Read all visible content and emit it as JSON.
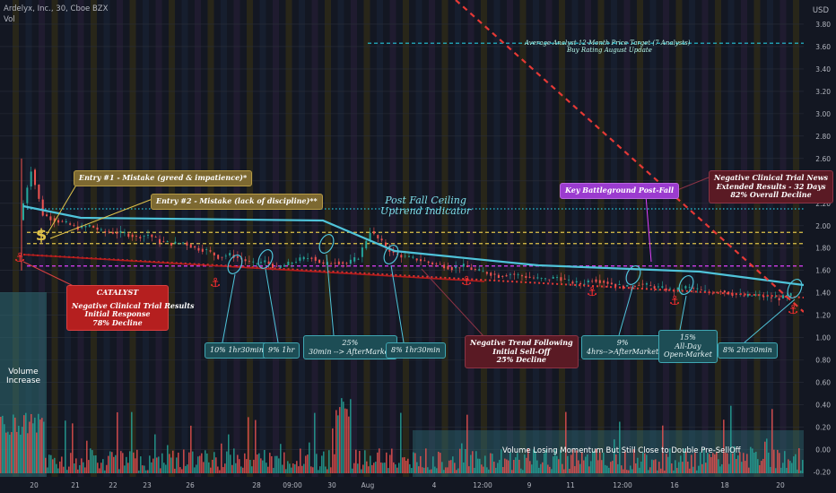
{
  "header": {
    "line1": "Ardelyx, Inc., 30, Cboe BZX",
    "line2": "Vol"
  },
  "currency": "USD",
  "colors": {
    "background": "#131722",
    "up": "#26a69a",
    "down": "#ef5350",
    "ceiling": "#4fc3d9",
    "trend": "#e53935",
    "gold": "#e0c34a",
    "magenta": "#e040fb"
  },
  "chart_data": {
    "type": "candlestick",
    "x_ticks": [
      "20",
      "21",
      "22",
      "23",
      "26",
      "28",
      "09:00",
      "30",
      "Aug",
      "4",
      "12:00",
      "9",
      "11",
      "12:00",
      "16",
      "18",
      "20"
    ],
    "y_ticks": [
      3.8,
      3.6,
      3.4,
      3.2,
      3.0,
      2.8,
      2.6,
      2.4,
      2.2,
      2.0,
      1.8,
      1.6,
      1.4,
      1.2,
      1.0,
      0.8,
      0.6,
      0.4,
      0.2,
      0.0,
      -0.2
    ],
    "y_range": [
      -0.26,
      4.0
    ],
    "price_labels": [
      {
        "value": 3.63,
        "text": "3.63",
        "color": "#26c6da"
      },
      {
        "value": 2.15,
        "text": "2.15",
        "color": "#26c6da"
      },
      {
        "value": 1.94,
        "text": "1.94",
        "color": "#e0c34a"
      },
      {
        "value": 1.84,
        "text": "1.84",
        "color": "#e0c34a"
      },
      {
        "value": 1.64,
        "text": "1.64",
        "color": "#e040fb"
      },
      {
        "value": 1.38,
        "text": "1.38",
        "color": "#26a69a"
      },
      {
        "value": 1.34,
        "text": "1.34",
        "color": "#ef5350"
      }
    ],
    "price_path": [
      [
        0.0,
        2.05
      ],
      [
        0.5,
        2.5
      ],
      [
        1,
        2.1
      ],
      [
        2,
        2.05
      ],
      [
        3,
        2.02
      ],
      [
        4,
        1.98
      ],
      [
        5,
        2.0
      ],
      [
        6,
        1.95
      ],
      [
        7,
        1.94
      ],
      [
        8,
        1.93
      ],
      [
        9,
        1.9
      ],
      [
        10,
        1.92
      ],
      [
        11,
        1.86
      ],
      [
        12,
        1.84
      ],
      [
        13,
        1.85
      ],
      [
        14,
        1.8
      ],
      [
        15,
        1.78
      ],
      [
        16,
        1.72
      ],
      [
        17,
        1.74
      ],
      [
        18,
        1.7
      ],
      [
        19,
        1.66
      ],
      [
        20,
        1.68
      ],
      [
        21,
        1.62
      ],
      [
        22,
        1.66
      ],
      [
        23,
        1.7
      ],
      [
        24,
        1.72
      ],
      [
        25,
        1.65
      ],
      [
        26,
        1.68
      ],
      [
        27,
        1.66
      ],
      [
        28,
        1.72
      ],
      [
        29,
        1.95
      ],
      [
        30,
        1.85
      ],
      [
        31,
        1.75
      ],
      [
        32,
        1.72
      ],
      [
        33,
        1.7
      ],
      [
        34,
        1.67
      ],
      [
        35,
        1.65
      ],
      [
        36,
        1.62
      ],
      [
        37,
        1.64
      ],
      [
        38,
        1.6
      ],
      [
        39,
        1.58
      ],
      [
        40,
        1.55
      ],
      [
        41,
        1.57
      ],
      [
        42,
        1.55
      ],
      [
        43,
        1.53
      ],
      [
        44,
        1.52
      ],
      [
        45,
        1.54
      ],
      [
        46,
        1.5
      ],
      [
        47,
        1.48
      ],
      [
        48,
        1.52
      ],
      [
        49,
        1.5
      ],
      [
        50,
        1.47
      ],
      [
        51,
        1.45
      ],
      [
        52,
        1.48
      ],
      [
        53,
        1.46
      ],
      [
        54,
        1.44
      ],
      [
        55,
        1.42
      ],
      [
        56,
        1.45
      ],
      [
        57,
        1.43
      ],
      [
        58,
        1.4
      ],
      [
        59,
        1.42
      ],
      [
        60,
        1.39
      ],
      [
        61,
        1.37
      ],
      [
        62,
        1.38
      ],
      [
        63,
        1.36
      ],
      [
        64,
        1.35
      ],
      [
        65,
        1.38
      ]
    ],
    "volume_label": "Vol"
  },
  "annotations": {
    "analyst_target": "Average Analyst 12-Month Price Target (7 Analysts)",
    "buy_rating": "Buy Rating August Update",
    "entry1": "Entry #1 - Mistake (greed & impatience)*",
    "entry2": "Entry #2 - Mistake (lack of discipline)**",
    "ceiling1": "Post Fall Ceiling",
    "ceiling2": "Uptrend Indicator",
    "key_battleground": "Key Battleground Post-Fall",
    "neg_news1": "Negative Clinical Trial News",
    "neg_news2": "Extended Results - 32 Days",
    "neg_news3": "82% Overall Decline",
    "catalyst_title": "CATALYST",
    "catalyst1": "Negative Clinical Trial Results",
    "catalyst2": "Initial Response",
    "catalyst3": "78% Decline",
    "neg_trend1": "Negative Trend Following",
    "neg_trend2": "Initial Sell-Off",
    "neg_trend3": "25% Decline",
    "box_a": "10% 1hr30min",
    "box_b": "9% 1hr",
    "box_c1": "25%",
    "box_c2": "30min --> AfterMarket",
    "box_d": "8% 1hr30min",
    "box_e1": "9%",
    "box_e2": "4hrs-->AfterMarket",
    "box_f1": "15%",
    "box_f2": "All-Day",
    "box_f3": "Open-Market",
    "box_g": "8% 2hr30min",
    "vol_increase1": "Volume",
    "vol_increase2": "Increase",
    "vol_momentum": "Volume Losing Momentum But Still Close to Double Pre-SellOff"
  }
}
